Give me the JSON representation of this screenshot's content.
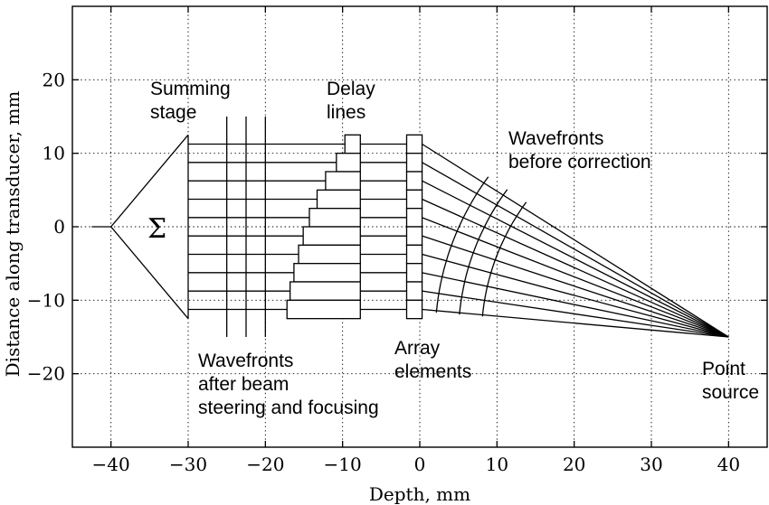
{
  "axes": {
    "x_label": "Depth, mm",
    "y_label": "Distance along transducer, mm",
    "x_range": [
      -45,
      45
    ],
    "y_range": [
      -30,
      30
    ],
    "x_ticks": [
      -40,
      -30,
      -20,
      -10,
      0,
      10,
      20,
      30,
      40
    ],
    "x_tick_labels": [
      "−40",
      "−30",
      "−20",
      "−10",
      "0",
      "10",
      "20",
      "30",
      "40"
    ],
    "y_ticks": [
      20,
      10,
      0,
      -10,
      -20
    ],
    "y_tick_labels": [
      "20",
      "10",
      "0",
      "−10",
      "−20"
    ],
    "grid": true
  },
  "labels": {
    "summing_stage": [
      "Summing",
      "stage"
    ],
    "sigma": "Σ",
    "delay_lines": [
      "Delay",
      "lines"
    ],
    "wavefronts_before": [
      "Wavefronts",
      "before correction"
    ],
    "wavefronts_after": [
      "Wavefronts",
      "after beam",
      "steering and focusing"
    ],
    "array_elements": [
      "Array",
      "elements"
    ],
    "point_source": [
      "Point",
      "source"
    ]
  },
  "geometry_data": {
    "point_source": [
      40,
      -15
    ],
    "summing_apex": [
      -40,
      0
    ],
    "summing_base_x": -30,
    "summing_half_height": 12.5,
    "output_line_start_x": -42.5,
    "channel_y": [
      11.25,
      8.75,
      6.25,
      3.75,
      1.25,
      -1.25,
      -3.75,
      -6.25,
      -8.75,
      -11.25
    ],
    "delay_left_x": [
      -9.7,
      -10.8,
      -12.2,
      -13.3,
      -14.3,
      -15.1,
      -15.7,
      -16.3,
      -16.8,
      -17.2
    ],
    "delay_right_x": -7.7,
    "array_x": [
      -1.7,
      0.3
    ],
    "array_y": [
      -12.5,
      12.5
    ],
    "wavefronts_after_x": [
      -25,
      -22.5,
      -20
    ],
    "wavefronts_after_y": [
      15,
      -15
    ],
    "wavefronts_before_dist": [
      32,
      35,
      38
    ]
  }
}
